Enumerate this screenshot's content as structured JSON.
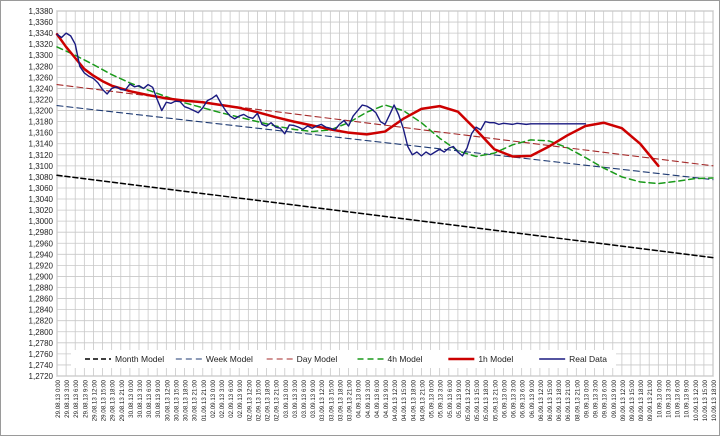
{
  "chart_data": {
    "type": "line",
    "title": "",
    "xlabel": "",
    "ylabel": "",
    "ylim": [
      1.272,
      1.338
    ],
    "grid": true,
    "legend_position": "bottom",
    "y_ticks": [
      "1,2720",
      "1,2740",
      "1,2760",
      "1,2780",
      "1,2800",
      "1,2820",
      "1,2840",
      "1,2860",
      "1,2880",
      "1,2900",
      "1,2920",
      "1,2940",
      "1,2960",
      "1,2980",
      "1,3000",
      "1,3020",
      "1,3040",
      "1,3060",
      "1,3080",
      "1,3100",
      "1,3120",
      "1,3140",
      "1,3160",
      "1,3180",
      "1,3200",
      "1,3220",
      "1,3240",
      "1,3260",
      "1,3280",
      "1,3300",
      "1,3320",
      "1,3340",
      "1,3360",
      "1,3380"
    ],
    "x_labels": [
      "29.08.13 0:00",
      "29.08.13 3:00",
      "29.08.13 6:00",
      "29.08.13 9:00",
      "29.08.13 12:00",
      "29.08.13 15:00",
      "29.08.13 18:00",
      "29.08.13 21:00",
      "30.08.13 0:00",
      "30.08.13 3:00",
      "30.08.13 6:00",
      "30.08.13 9:00",
      "30.08.13 12:00",
      "30.08.13 15:00",
      "30.08.13 18:00",
      "30.08.13 21:00",
      "01.09.13 21:00",
      "02.09.13 0:00",
      "02.09.13 3:00",
      "02.09.13 6:00",
      "02.09.13 9:00",
      "02.09.13 12:00",
      "02.09.13 15:00",
      "02.09.13 18:00",
      "02.09.13 21:00",
      "03.09.13 0:00",
      "03.09.13 3:00",
      "03.09.13 6:00",
      "03.09.13 9:00",
      "03.09.13 12:00",
      "03.09.13 15:00",
      "03.09.13 18:00",
      "03.09.13 21:00",
      "04.09.13 0:00",
      "04.09.13 3:00",
      "04.09.13 6:00",
      "04.09.13 9:00",
      "04.09.13 12:00",
      "04.09.13 15:00",
      "04.09.13 18:00",
      "04.09.13 21:00",
      "05.09.13 0:00",
      "05.09.13 3:00",
      "05.09.13 6:00",
      "05.09.13 9:00",
      "05.09.13 12:00",
      "05.09.13 15:00",
      "05.09.13 18:00",
      "05.09.13 21:00",
      "06.09.13 0:00",
      "06.09.13 3:00",
      "06.09.13 6:00",
      "06.09.13 9:00",
      "06.09.13 12:00",
      "06.09.13 15:00",
      "06.09.13 18:00",
      "06.09.13 21:00",
      "08.09.13 21:00",
      "09.09.13 0:00",
      "09.09.13 3:00",
      "09.09.13 6:00",
      "09.09.13 9:00",
      "09.09.13 12:00",
      "09.09.13 15:00",
      "09.09.13 18:00",
      "09.09.13 21:00",
      "10.09.13 0:00",
      "10.09.13 3:00",
      "10.09.13 6:00",
      "10.09.13 9:00",
      "10.09.13 12:00",
      "10.09.13 15:00",
      "10.09.13 18:00"
    ],
    "series": [
      {
        "name": "Month Model",
        "color": "#000000",
        "style": "dashed",
        "width": 1.5,
        "x": [
          0,
          72
        ],
        "values": [
          1.3083,
          1.2934
        ]
      },
      {
        "name": "Week Model",
        "color": "#1f3b73",
        "style": "dashed",
        "width": 1.1,
        "x": [
          0,
          72
        ],
        "values": [
          1.3209,
          1.3075
        ]
      },
      {
        "name": "Day Model",
        "color": "#a52a2a",
        "style": "dashed",
        "width": 1.1,
        "x": [
          0,
          72
        ],
        "values": [
          1.3247,
          1.31
        ]
      },
      {
        "name": "4h Model",
        "color": "#1a9a1a",
        "style": "dashed",
        "width": 1.5,
        "x": [
          0,
          2,
          4,
          6,
          8,
          10,
          12,
          14,
          16,
          18,
          20,
          22,
          24,
          26,
          28,
          30,
          32,
          34,
          36,
          38,
          40,
          42,
          44,
          46,
          48,
          50,
          52,
          54,
          56,
          58,
          60,
          62,
          64,
          66,
          68,
          70,
          72
        ],
        "values": [
          1.3315,
          1.33,
          1.3283,
          1.3265,
          1.325,
          1.3237,
          1.3225,
          1.3214,
          1.3205,
          1.3196,
          1.3188,
          1.318,
          1.3172,
          1.3166,
          1.3162,
          1.3165,
          1.3178,
          1.3197,
          1.321,
          1.32,
          1.3178,
          1.315,
          1.3127,
          1.3117,
          1.3123,
          1.3138,
          1.3147,
          1.3145,
          1.3133,
          1.3115,
          1.3096,
          1.308,
          1.3071,
          1.3068,
          1.3072,
          1.3077,
          1.3078
        ]
      },
      {
        "name": "1h Model",
        "color": "#cc0000",
        "style": "solid",
        "width": 2.5,
        "x": [
          0,
          1,
          2,
          3,
          4,
          5,
          6,
          8,
          10,
          12,
          14,
          16,
          18,
          20,
          22,
          24,
          26,
          28,
          30,
          32,
          34,
          36,
          38,
          40,
          42,
          44,
          46,
          48,
          50,
          52,
          54,
          56,
          58,
          60,
          62,
          64,
          66
        ],
        "values": [
          1.3338,
          1.3315,
          1.3295,
          1.3275,
          1.3263,
          1.3253,
          1.3245,
          1.3235,
          1.3228,
          1.3222,
          1.3218,
          1.3215,
          1.321,
          1.3205,
          1.3197,
          1.3188,
          1.318,
          1.3173,
          1.3166,
          1.316,
          1.3157,
          1.3162,
          1.3185,
          1.3203,
          1.3208,
          1.3198,
          1.3165,
          1.313,
          1.3117,
          1.3118,
          1.3135,
          1.3155,
          1.3172,
          1.3178,
          1.3168,
          1.314,
          1.31
        ]
      },
      {
        "name": "Real Data",
        "color": "#1a1a80",
        "style": "solid",
        "width": 1.4,
        "x": [
          0,
          0.5,
          1,
          1.5,
          2,
          2.5,
          3,
          3.5,
          4,
          4.5,
          5,
          5.5,
          6,
          6.5,
          7,
          7.5,
          8,
          8.5,
          9,
          9.5,
          10,
          10.5,
          11,
          11.5,
          12,
          12.5,
          13,
          13.5,
          14,
          14.5,
          15,
          15.5,
          16,
          16.5,
          17,
          17.5,
          18,
          18.5,
          19,
          19.5,
          20,
          20.5,
          21,
          21.5,
          22,
          22.5,
          23,
          23.5,
          24,
          24.5,
          25,
          25.5,
          26,
          26.5,
          27,
          27.5,
          28,
          28.5,
          29,
          29.5,
          30,
          30.5,
          31,
          31.5,
          32,
          32.5,
          33,
          33.5,
          34,
          34.5,
          35,
          35.5,
          36,
          36.5,
          37,
          37.5,
          38,
          38.5,
          39,
          39.5,
          40,
          40.5,
          41,
          41.5,
          42,
          42.5,
          43,
          43.5,
          44,
          44.5,
          45,
          45.5,
          46,
          46.5,
          47,
          47.5,
          48,
          48.5,
          49,
          49.5,
          50,
          50.5,
          51,
          51.5,
          52,
          52.5,
          53,
          53.5,
          54,
          54.5,
          55,
          55.5,
          56,
          56.5,
          57,
          57.5,
          58
        ],
        "values": [
          1.3338,
          1.3332,
          1.334,
          1.3335,
          1.332,
          1.328,
          1.3268,
          1.3262,
          1.3258,
          1.325,
          1.3238,
          1.323,
          1.324,
          1.3243,
          1.3238,
          1.3237,
          1.3248,
          1.3243,
          1.3245,
          1.324,
          1.3247,
          1.3242,
          1.322,
          1.32,
          1.3215,
          1.3213,
          1.3217,
          1.3216,
          1.3207,
          1.3204,
          1.32,
          1.3196,
          1.3205,
          1.3218,
          1.3222,
          1.3228,
          1.3213,
          1.32,
          1.319,
          1.3185,
          1.319,
          1.3193,
          1.3188,
          1.3186,
          1.3195,
          1.3175,
          1.3172,
          1.3178,
          1.317,
          1.3168,
          1.3158,
          1.3174,
          1.3173,
          1.317,
          1.3166,
          1.3172,
          1.3168,
          1.3172,
          1.3175,
          1.317,
          1.3168,
          1.3165,
          1.3175,
          1.3182,
          1.3172,
          1.319,
          1.32,
          1.321,
          1.3208,
          1.3203,
          1.3196,
          1.318,
          1.3175,
          1.3192,
          1.321,
          1.3192,
          1.3168,
          1.3135,
          1.312,
          1.3125,
          1.3118,
          1.3125,
          1.312,
          1.3125,
          1.313,
          1.3125,
          1.3132,
          1.3135,
          1.3125,
          1.3118,
          1.3132,
          1.3158,
          1.317,
          1.3165,
          1.318,
          1.3178,
          1.3178,
          1.3175,
          1.3177,
          1.3176,
          1.3175,
          1.3177,
          1.3176,
          1.3175,
          1.3176,
          1.3176,
          1.3176,
          1.3176,
          1.3176,
          1.3176,
          1.3176,
          1.3176,
          1.3176,
          1.3176,
          1.3176,
          1.3176,
          1.3176
        ]
      }
    ]
  }
}
